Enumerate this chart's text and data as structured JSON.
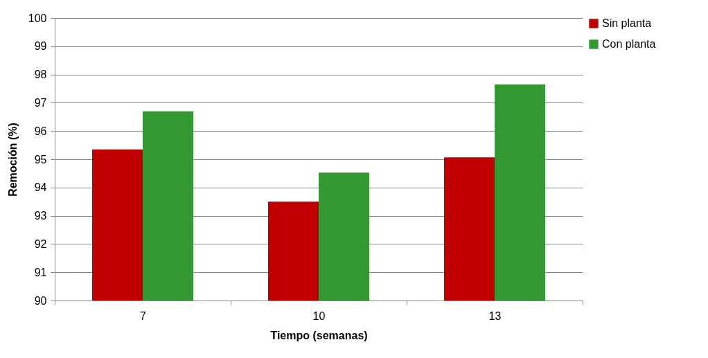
{
  "chart_data": {
    "type": "bar",
    "xlabel": "Tiempo (semanas)",
    "ylabel": "Remoción (%)",
    "categories": [
      "7",
      "10",
      "13"
    ],
    "series": [
      {
        "name": "Sin planta",
        "color": "#c00000",
        "values": [
          95.35,
          93.5,
          95.07
        ]
      },
      {
        "name": "Con planta",
        "color": "#339933",
        "values": [
          96.7,
          94.53,
          97.65
        ]
      }
    ],
    "ylim": [
      90,
      100
    ],
    "yticks": [
      90,
      91,
      92,
      93,
      94,
      95,
      96,
      97,
      98,
      99,
      100
    ],
    "grid": "y",
    "legend": "right"
  }
}
